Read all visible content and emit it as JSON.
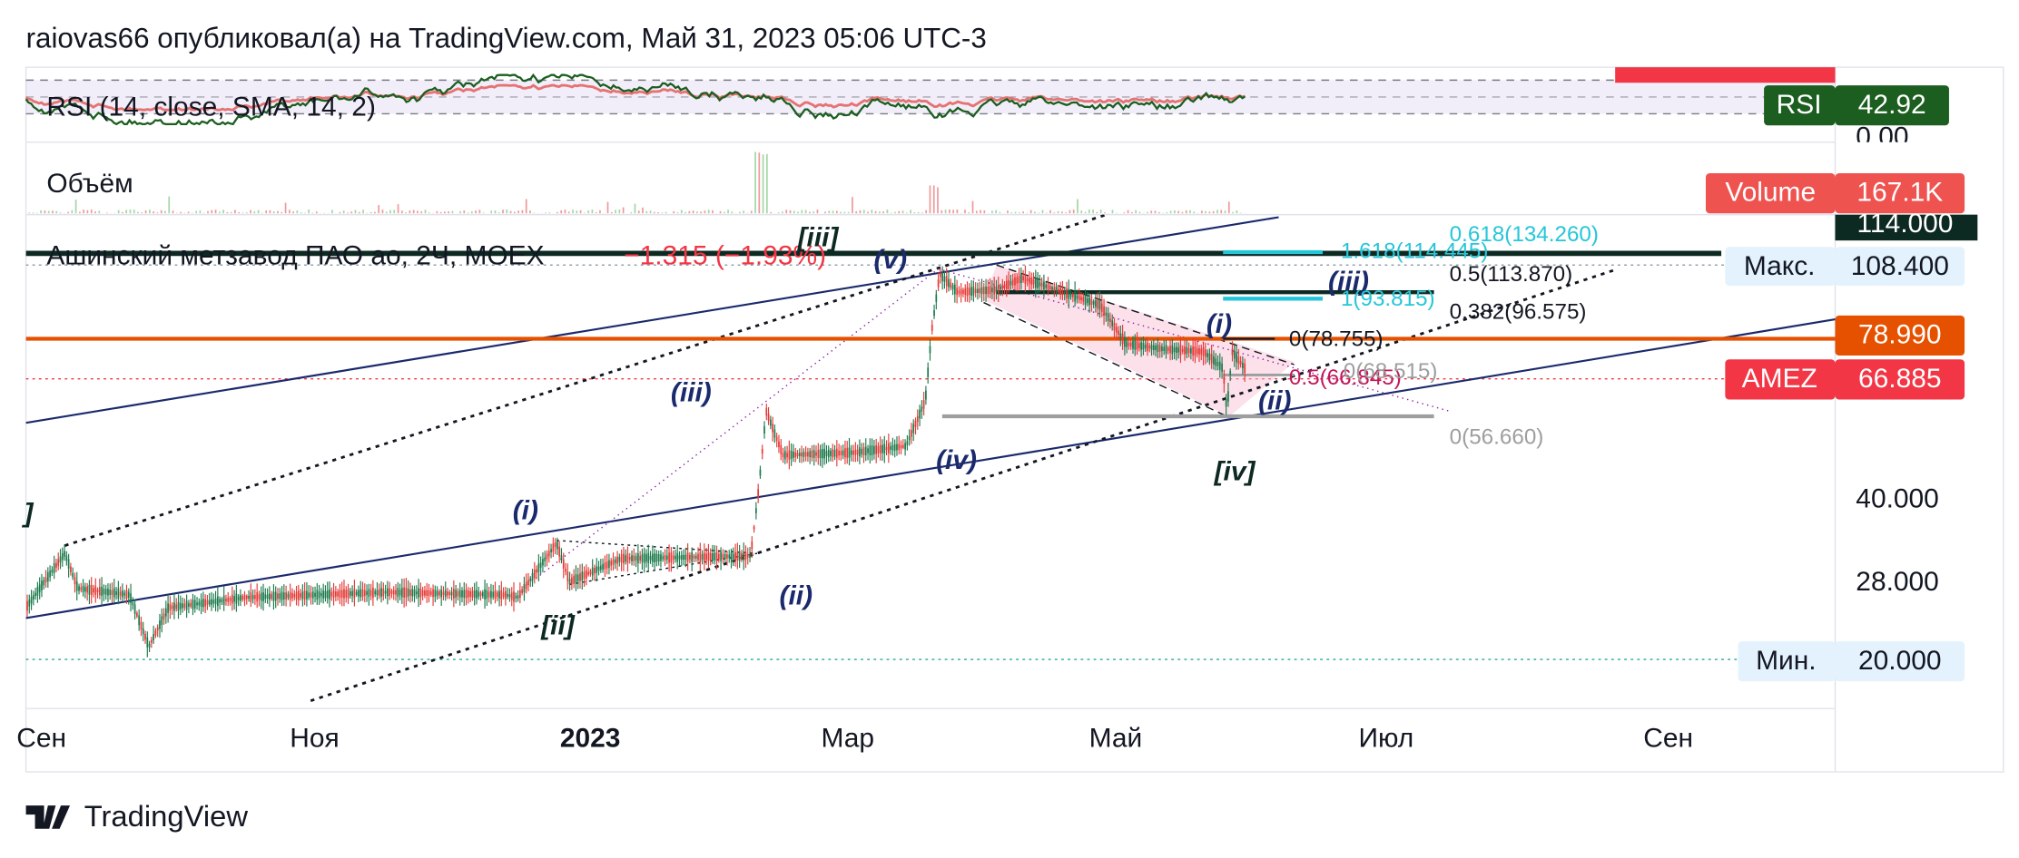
{
  "header": {
    "text": "raiovas66 опубликовал(а) на TradingView.com, Май 31, 2023 05:06 UTC-3"
  },
  "rsi": {
    "label": "RSI (14, close, SMA, 14, 2)",
    "badge_name": "RSI",
    "badge_value": "42.92",
    "axis_label": "0.00"
  },
  "volume": {
    "label": "Объём",
    "badge_name": "Volume",
    "badge_value": "167.1K"
  },
  "legend": {
    "symbol": "Ашинский метзавод ПАО ао, 2Ч, MOEX",
    "change": "−1.315 (−1.93%)"
  },
  "price_scale": {
    "top": "114.000",
    "max": {
      "label": "Макс.",
      "value": "108.400"
    },
    "level": "78.990",
    "last": {
      "label": "AMEZ",
      "value": "66.885"
    },
    "ticks": [
      "40.000",
      "28.000"
    ],
    "min": {
      "label": "Мин.",
      "value": "20.000"
    }
  },
  "time_axis": [
    "Сен",
    "Ноя",
    "2023",
    "Мар",
    "Май",
    "Июл",
    "Сен"
  ],
  "waves": [
    "[iii]",
    "(v)",
    "(iii)",
    "(i)",
    "(iv)",
    "(ii)",
    "[ii]",
    "]",
    "(i)",
    "(iii)",
    "(ii)",
    "[iv]"
  ],
  "fib": [
    "0.618(134.260)",
    "1.618(114.445)",
    "0.5(113.870)",
    "1(93.815)",
    "0.382(96.575)",
    "0(78.755)",
    "0.5(66.845)",
    "0(68.515)",
    "0(56.660)"
  ],
  "footer": {
    "brand": "TradingView"
  }
}
